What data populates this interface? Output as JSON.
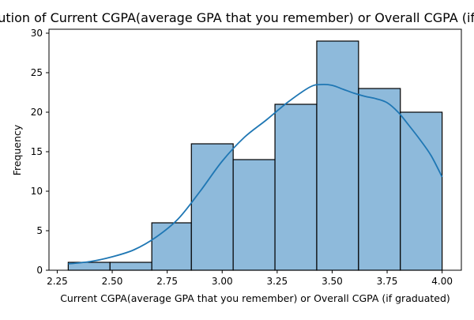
{
  "chart_data": {
    "type": "bar",
    "subtype": "histogram-with-kde",
    "title": "Distribution of Current CGPA(average GPA that you remember) or Overall CGPA (if graduated)",
    "xlabel": "Current CGPA(average GPA that you remember) or Overall CGPA (if graduated)",
    "ylabel": "Frequency",
    "xlim": [
      2.2125,
      4.0875
    ],
    "ylim": [
      0,
      30.5
    ],
    "x_ticks": [
      2.25,
      2.5,
      2.75,
      3.0,
      3.25,
      3.5,
      3.75,
      4.0
    ],
    "x_tick_labels": [
      "2.25",
      "2.50",
      "2.75",
      "3.00",
      "3.25",
      "3.50",
      "3.75",
      "4.00"
    ],
    "y_ticks": [
      0,
      5,
      10,
      15,
      20,
      25,
      30
    ],
    "y_tick_labels": [
      "0",
      "5",
      "10",
      "15",
      "20",
      "25",
      "30"
    ],
    "bins": [
      {
        "start": 2.3,
        "end": 2.49,
        "count": 1
      },
      {
        "start": 2.49,
        "end": 2.68,
        "count": 1
      },
      {
        "start": 2.68,
        "end": 2.86,
        "count": 6
      },
      {
        "start": 2.86,
        "end": 3.05,
        "count": 16
      },
      {
        "start": 3.05,
        "end": 3.24,
        "count": 14
      },
      {
        "start": 3.24,
        "end": 3.43,
        "count": 21
      },
      {
        "start": 3.43,
        "end": 3.62,
        "count": 29
      },
      {
        "start": 3.62,
        "end": 3.81,
        "count": 23
      },
      {
        "start": 3.81,
        "end": 4.0,
        "count": 20
      }
    ],
    "kde": {
      "x": [
        2.3,
        2.4,
        2.5,
        2.6,
        2.7,
        2.8,
        2.9,
        3.0,
        3.1,
        3.2,
        3.3,
        3.4,
        3.45,
        3.5,
        3.55,
        3.6,
        3.65,
        3.7,
        3.75,
        3.8,
        3.85,
        3.9,
        3.95,
        4.0
      ],
      "y": [
        0.8,
        1.1,
        1.7,
        2.6,
        4.2,
        6.5,
        10.0,
        13.8,
        16.8,
        19.0,
        21.3,
        23.2,
        23.5,
        23.4,
        22.9,
        22.4,
        22.0,
        21.7,
        21.2,
        20.0,
        18.3,
        16.5,
        14.5,
        11.8
      ]
    },
    "grid": false,
    "legend": false,
    "colors": {
      "bar_fill": "#8ebadb",
      "bar_edge": "#000000",
      "kde_line": "#1f77b4",
      "axes": "#000000",
      "background": "#ffffff"
    }
  }
}
